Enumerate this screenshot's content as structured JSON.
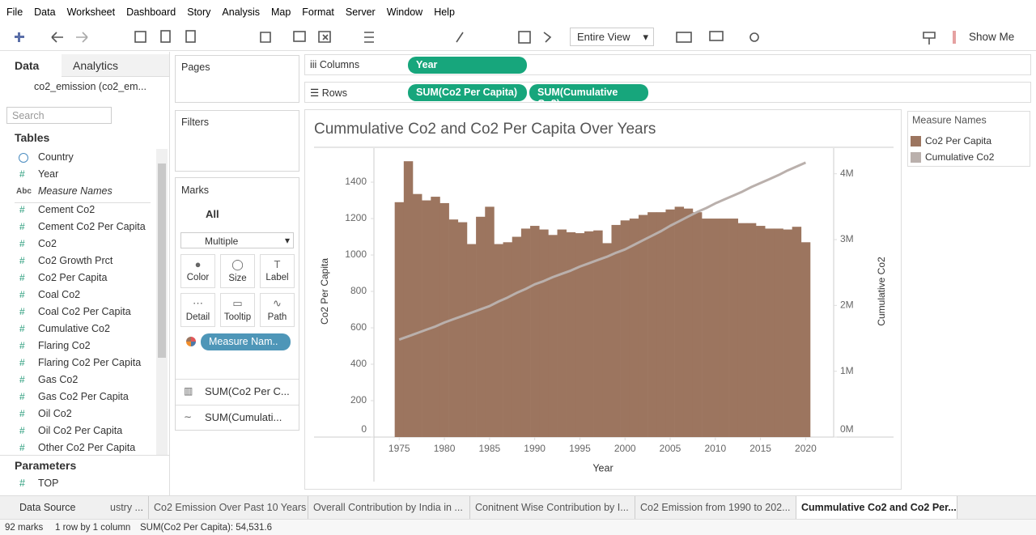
{
  "menu": [
    "File",
    "Data",
    "Worksheet",
    "Dashboard",
    "Story",
    "Analysis",
    "Map",
    "Format",
    "Server",
    "Window",
    "Help"
  ],
  "toolbar": {
    "view_mode": "Entire View",
    "show_me": "Show Me"
  },
  "data_pane": {
    "tabs": [
      "Data",
      "Analytics"
    ],
    "datasource": "co2_emission (co2_em...",
    "search_placeholder": "Search",
    "tables_heading": "Tables",
    "fields": [
      {
        "name": "Country"
      },
      {
        "icon": "#",
        "name": "Year"
      },
      {
        "icon": "Abc",
        "name": "Measure Names"
      },
      {
        "icon": "#",
        "name": "Cement Co2"
      },
      {
        "icon": "#",
        "name": "Cement Co2 Per Capita"
      },
      {
        "icon": "#",
        "name": "Co2"
      },
      {
        "icon": "#",
        "name": "Co2 Growth Prct"
      },
      {
        "icon": "#",
        "name": "Co2 Per Capita"
      },
      {
        "icon": "#",
        "name": "Coal Co2"
      },
      {
        "icon": "#",
        "name": "Coal Co2 Per Capita"
      },
      {
        "icon": "#",
        "name": "Cumulative Co2"
      },
      {
        "icon": "#",
        "name": "Flaring Co2"
      },
      {
        "icon": "#",
        "name": "Flaring Co2 Per Capita"
      },
      {
        "icon": "#",
        "name": "Gas Co2"
      },
      {
        "icon": "#",
        "name": "Gas Co2 Per Capita"
      },
      {
        "icon": "#",
        "name": "Oil Co2"
      },
      {
        "icon": "#",
        "name": "Oil Co2 Per Capita"
      },
      {
        "icon": "#",
        "name": "Other Co2 Per Capita"
      }
    ],
    "parameters_heading": "Parameters",
    "parameters": [
      {
        "icon": "#",
        "name": "TOP"
      }
    ]
  },
  "cards": {
    "pages": "Pages",
    "filters": "Filters",
    "marks": "Marks",
    "marks_all": "All",
    "mark_type": "Multiple",
    "mark_buttons": [
      "Color",
      "Size",
      "Label",
      "Detail",
      "Tooltip",
      "Path"
    ],
    "marks_pill": "Measure Nam..",
    "mark_layers": [
      "SUM(Co2 Per C...",
      "SUM(Cumulati..."
    ]
  },
  "shelves": {
    "columns_label": "Columns",
    "columns": [
      "Year"
    ],
    "rows_label": "Rows",
    "rows": [
      "SUM(Co2 Per Capita)",
      "SUM(Cumulative Co2)"
    ]
  },
  "chart_data": {
    "type": "combo",
    "title": "Cummulative Co2 and Co2 Per Capita Over Years",
    "x_label": "Year",
    "y_label": "Co2 Per Capita",
    "y2_label": "Cumulative Co2",
    "legend_title": "Measure Names",
    "x": [
      1975,
      1976,
      1977,
      1978,
      1979,
      1980,
      1981,
      1982,
      1983,
      1984,
      1985,
      1986,
      1987,
      1988,
      1989,
      1990,
      1991,
      1992,
      1993,
      1994,
      1995,
      1996,
      1997,
      1998,
      1999,
      2000,
      2001,
      2002,
      2003,
      2004,
      2005,
      2006,
      2007,
      2008,
      2009,
      2010,
      2011,
      2012,
      2013,
      2014,
      2015,
      2016,
      2017,
      2018,
      2019,
      2020
    ],
    "series": [
      {
        "name": "Co2 Per Capita",
        "type": "bar",
        "color": "#9c755f",
        "values": [
          1290,
          1515,
          1335,
          1300,
          1320,
          1285,
          1195,
          1180,
          1060,
          1210,
          1265,
          1060,
          1070,
          1100,
          1145,
          1160,
          1140,
          1110,
          1140,
          1125,
          1120,
          1130,
          1135,
          1065,
          1165,
          1190,
          1200,
          1220,
          1235,
          1235,
          1250,
          1265,
          1255,
          1235,
          1200,
          1200,
          1200,
          1200,
          1175,
          1175,
          1160,
          1145,
          1145,
          1140,
          1155,
          1070
        ]
      },
      {
        "name": "Cumulative Co2",
        "type": "line",
        "axis": "y2",
        "color": "#bab0ac",
        "values": [
          1480000,
          1530000,
          1580000,
          1630000,
          1680000,
          1740000,
          1790000,
          1840000,
          1890000,
          1940000,
          1990000,
          2060000,
          2120000,
          2190000,
          2250000,
          2320000,
          2370000,
          2430000,
          2480000,
          2530000,
          2590000,
          2640000,
          2690000,
          2740000,
          2800000,
          2850000,
          2920000,
          2990000,
          3060000,
          3130000,
          3210000,
          3280000,
          3350000,
          3420000,
          3480000,
          3550000,
          3610000,
          3670000,
          3730000,
          3800000,
          3860000,
          3920000,
          3980000,
          4050000,
          4110000,
          4170000
        ]
      }
    ],
    "xlim": [
      1972.2,
      2023.1
    ],
    "xticks": [
      1975,
      1980,
      1985,
      1990,
      1995,
      2000,
      2005,
      2010,
      2015,
      2020
    ],
    "ylim": [
      0,
      1587
    ],
    "yticks": [
      0,
      200,
      400,
      600,
      800,
      1000,
      1200,
      1400
    ],
    "y2lim": [
      0,
      4390000
    ],
    "y2ticks": [
      {
        "value": 0,
        "label": "0M"
      },
      {
        "value": 1000000,
        "label": "1M"
      },
      {
        "value": 2000000,
        "label": "2M"
      },
      {
        "value": 3000000,
        "label": "3M"
      },
      {
        "value": 4000000,
        "label": "4M"
      }
    ]
  },
  "sheet_tabs": {
    "data_source": "Data Source",
    "tabs": [
      "ustry ...",
      "Co2 Emission Over Past 10 Years",
      "Overall Contribution by India in ...",
      "Conitnent Wise Contribution by I...",
      "Co2 Emission from 1990 to 202...",
      "Cummulative Co2 and Co2 Per..."
    ],
    "active": 5
  },
  "status_bar": {
    "marks": "92 marks",
    "dims": "1 row by 1 column",
    "sum": "SUM(Co2 Per Capita): 54,531.6"
  }
}
